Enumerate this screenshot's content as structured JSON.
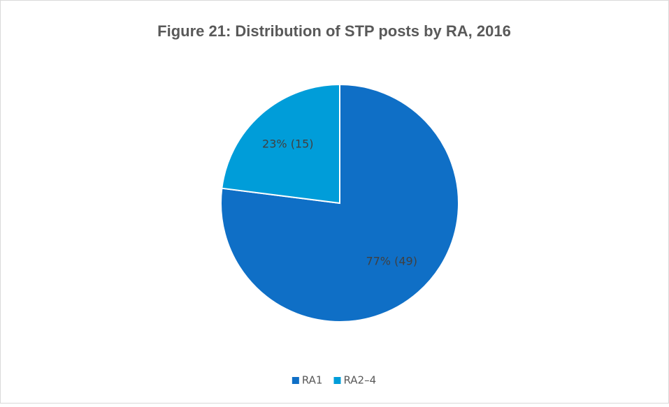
{
  "chart_data": {
    "type": "pie",
    "title": "Figure 21: Distribution of STP posts by RA, 2016",
    "categories": [
      "RA1",
      "RA2–4"
    ],
    "values": [
      77,
      23
    ],
    "value_labels": [
      "77% (49)",
      "23% (15)"
    ],
    "colors": [
      "#0f6fc6",
      "#009dd9"
    ],
    "legend": "bottom"
  }
}
